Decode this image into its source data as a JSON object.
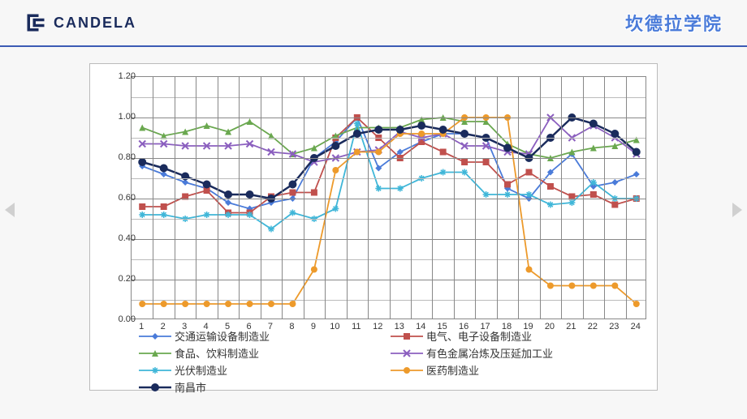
{
  "header": {
    "brand": "CANDELA",
    "title": "坎德拉学院"
  },
  "chart": {
    "ylim": [
      0,
      1.2
    ],
    "ytick_step": 0.2,
    "yticks": [
      "0.00",
      "0.20",
      "0.40",
      "0.60",
      "0.80",
      "1.00",
      "1.20"
    ],
    "xcount": 24,
    "xticks": [
      "1",
      "2",
      "3",
      "4",
      "5",
      "6",
      "7",
      "8",
      "9",
      "10",
      "11",
      "12",
      "13",
      "14",
      "15",
      "16",
      "17",
      "18",
      "19",
      "20",
      "21",
      "22",
      "23",
      "24"
    ],
    "plot_bg": "#ffffff",
    "grid_color": "#888888",
    "series": [
      {
        "name": "交通运输设备制造业",
        "color": "#4a7bd9",
        "marker": "diamond",
        "values": [
          0.76,
          0.72,
          0.68,
          0.65,
          0.58,
          0.55,
          0.58,
          0.6,
          0.8,
          0.88,
          1.0,
          0.75,
          0.83,
          0.88,
          0.92,
          0.92,
          0.9,
          0.65,
          0.6,
          0.73,
          0.82,
          0.66,
          0.68,
          0.72
        ]
      },
      {
        "name": "电气、电子设备制造业",
        "color": "#c0504d",
        "marker": "square",
        "values": [
          0.56,
          0.56,
          0.61,
          0.64,
          0.53,
          0.53,
          0.61,
          0.63,
          0.63,
          0.9,
          1.0,
          0.9,
          0.8,
          0.88,
          0.83,
          0.78,
          0.78,
          0.67,
          0.73,
          0.66,
          0.61,
          0.62,
          0.57,
          0.6
        ]
      },
      {
        "name": "食品、饮料制造业",
        "color": "#6aa84f",
        "marker": "triangle",
        "values": [
          0.95,
          0.91,
          0.93,
          0.96,
          0.93,
          0.98,
          0.91,
          0.82,
          0.85,
          0.91,
          0.95,
          0.95,
          0.95,
          0.99,
          1.0,
          0.98,
          0.98,
          0.87,
          0.82,
          0.8,
          0.83,
          0.85,
          0.86,
          0.89
        ]
      },
      {
        "name": "有色金属冶炼及压延加工业",
        "color": "#8b5fbf",
        "marker": "x",
        "values": [
          0.87,
          0.87,
          0.86,
          0.86,
          0.86,
          0.87,
          0.83,
          0.82,
          0.78,
          0.8,
          0.83,
          0.84,
          0.93,
          0.9,
          0.92,
          0.86,
          0.86,
          0.83,
          0.82,
          1.0,
          0.9,
          0.96,
          0.9,
          0.82
        ]
      },
      {
        "name": "光伏制造业",
        "color": "#3fb6d8",
        "marker": "asterisk",
        "values": [
          0.52,
          0.52,
          0.5,
          0.52,
          0.52,
          0.52,
          0.45,
          0.53,
          0.5,
          0.55,
          0.97,
          0.65,
          0.65,
          0.7,
          0.73,
          0.73,
          0.62,
          0.62,
          0.62,
          0.57,
          0.58,
          0.68,
          0.6,
          0.6
        ]
      },
      {
        "name": "医药制造业",
        "color": "#ed9a2b",
        "marker": "circle",
        "values": [
          0.08,
          0.08,
          0.08,
          0.08,
          0.08,
          0.08,
          0.08,
          0.08,
          0.25,
          0.74,
          0.83,
          0.83,
          0.92,
          0.92,
          0.92,
          1.0,
          1.0,
          1.0,
          0.25,
          0.17,
          0.17,
          0.17,
          0.17,
          0.08
        ]
      },
      {
        "name": "南昌市",
        "color": "#1a2b5c",
        "marker": "bigcircle",
        "values": [
          0.78,
          0.75,
          0.71,
          0.67,
          0.62,
          0.62,
          0.6,
          0.67,
          0.8,
          0.86,
          0.92,
          0.94,
          0.94,
          0.96,
          0.94,
          0.92,
          0.9,
          0.85,
          0.8,
          0.9,
          1.0,
          0.97,
          0.92,
          0.83
        ]
      }
    ]
  }
}
